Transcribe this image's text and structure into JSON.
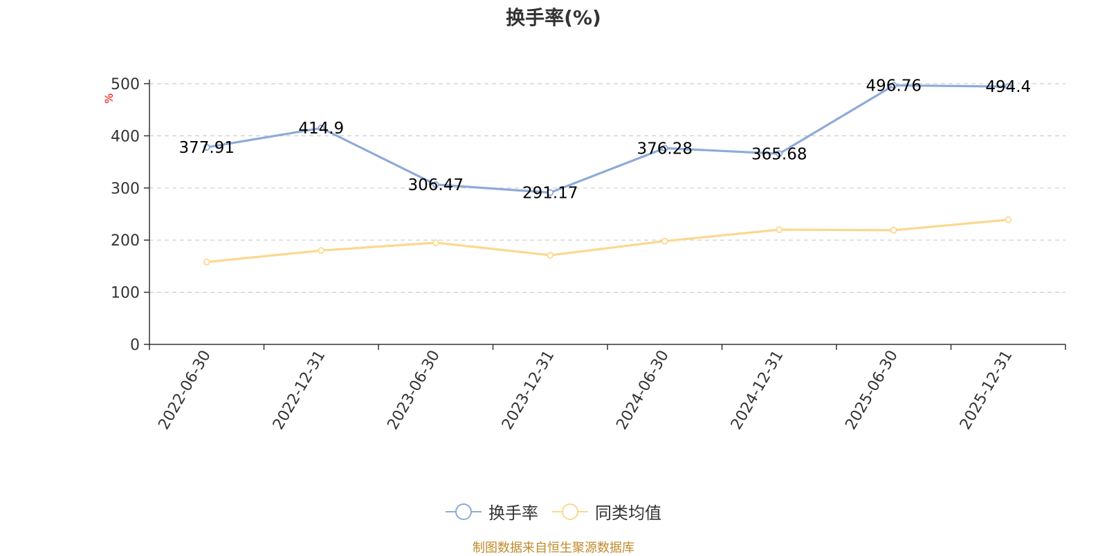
{
  "chart_data": {
    "type": "line",
    "title": "换手率(%)",
    "ylabel": "%",
    "xlabel": "",
    "ylim": [
      0,
      500
    ],
    "yticks": [
      0,
      100,
      200,
      300,
      400,
      500
    ],
    "grid": true,
    "legend_position": "bottom-center",
    "categories": [
      "2022-06-30",
      "2022-12-31",
      "2023-06-30",
      "2023-12-31",
      "2024-06-30",
      "2024-12-31",
      "2025-06-30",
      "2025-12-31"
    ],
    "series": [
      {
        "name": "换手率",
        "color": "#8eaad8",
        "values": [
          377.91,
          414.9,
          306.47,
          291.17,
          376.28,
          365.68,
          496.76,
          494.4
        ],
        "labels": [
          "377.91",
          "414.9",
          "306.47",
          "291.17",
          "376.28",
          "365.68",
          "496.76",
          "494.4"
        ]
      },
      {
        "name": "同类均值",
        "color": "#fbd88e",
        "values": [
          158,
          180,
          195,
          171,
          198,
          220,
          219,
          239
        ]
      }
    ]
  },
  "source": "制图数据来自恒生聚源数据库"
}
